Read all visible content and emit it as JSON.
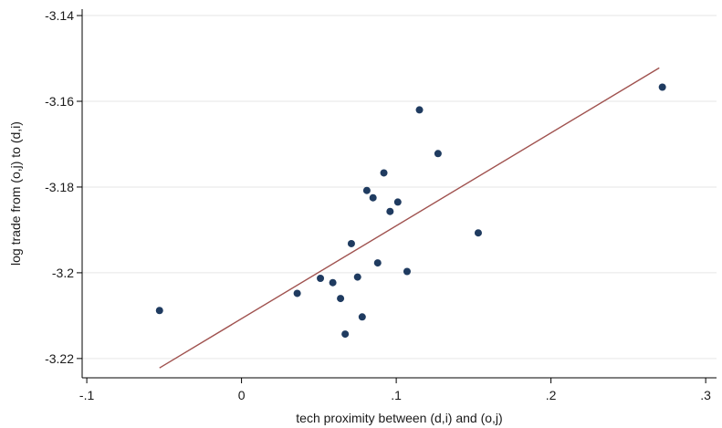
{
  "chart_data": {
    "type": "scatter",
    "title": "",
    "xlabel": "tech proximity between (d,i) and (o,j)",
    "ylabel": "log trade from (o,j) to (d,i)",
    "xlim": [
      -0.103,
      0.307
    ],
    "ylim": [
      -3.2245,
      -3.1385
    ],
    "x_ticks": [
      -0.1,
      0,
      0.1,
      0.2,
      0.3
    ],
    "x_tick_labels": [
      "-.1",
      "0",
      ".1",
      ".2",
      ".3"
    ],
    "y_ticks": [
      -3.14,
      -3.16,
      -3.18,
      -3.2,
      -3.22
    ],
    "y_tick_labels": [
      "-3.14",
      "-3.16",
      "-3.18",
      "-3.2",
      "-3.22"
    ],
    "grid": true,
    "legend": "none",
    "series": [
      {
        "kind": "points",
        "color": "#1f3b60",
        "points": [
          [
            -0.053,
            -3.2088
          ],
          [
            0.036,
            -3.2048
          ],
          [
            0.051,
            -3.2013
          ],
          [
            0.059,
            -3.2023
          ],
          [
            0.064,
            -3.206
          ],
          [
            0.067,
            -3.2143
          ],
          [
            0.071,
            -3.1932
          ],
          [
            0.075,
            -3.201
          ],
          [
            0.078,
            -3.2103
          ],
          [
            0.081,
            -3.1808
          ],
          [
            0.085,
            -3.1825
          ],
          [
            0.088,
            -3.1977
          ],
          [
            0.092,
            -3.1767
          ],
          [
            0.096,
            -3.1857
          ],
          [
            0.101,
            -3.1835
          ],
          [
            0.107,
            -3.1997
          ],
          [
            0.115,
            -3.162
          ],
          [
            0.127,
            -3.1722
          ],
          [
            0.153,
            -3.1907
          ],
          [
            0.272,
            -3.1567
          ]
        ]
      },
      {
        "kind": "fit-line",
        "color": "#a0524f",
        "points": [
          [
            -0.053,
            -3.2222
          ],
          [
            0.27,
            -3.1522
          ]
        ]
      }
    ]
  }
}
